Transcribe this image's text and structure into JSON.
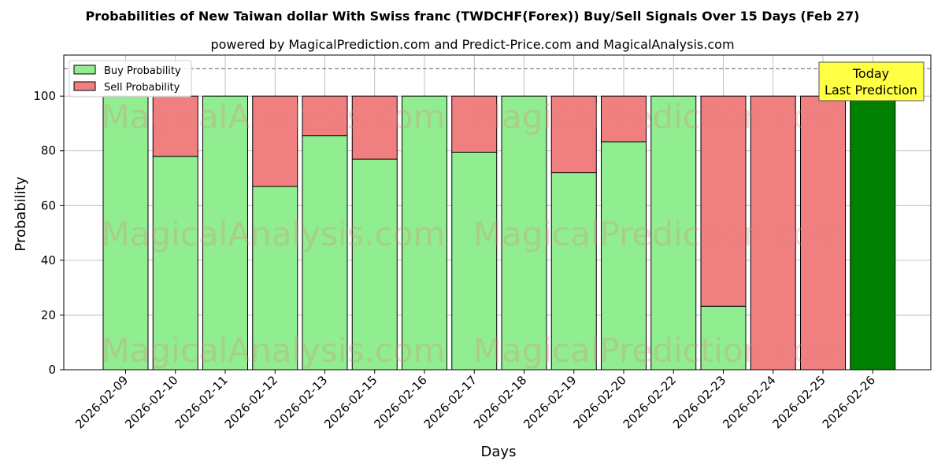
{
  "chart_data": {
    "type": "bar",
    "stacked": true,
    "title": "Probabilities of New Taiwan dollar With Swiss franc (TWDCHF(Forex)) Buy/Sell Signals Over 15 Days (Feb 27)",
    "subtitle": "powered by MagicalPrediction.com and Predict-Price.com and MagicalAnalysis.com",
    "xlabel": "Days",
    "ylabel": "Probability",
    "ylim": [
      0,
      115
    ],
    "yticks": [
      0,
      20,
      40,
      60,
      80,
      100
    ],
    "reference_line": 110,
    "grid": true,
    "legend_position": "top-left",
    "categories": [
      "2026-02-09",
      "2026-02-10",
      "2026-02-11",
      "2026-02-12",
      "2026-02-13",
      "2026-02-15",
      "2026-02-16",
      "2026-02-17",
      "2026-02-18",
      "2026-02-19",
      "2026-02-20",
      "2026-02-22",
      "2026-02-23",
      "2026-02-24",
      "2026-02-25",
      "2026-02-26"
    ],
    "series": [
      {
        "name": "Buy Probability",
        "color": "#90ee90",
        "values": [
          100,
          78,
          100,
          67,
          85.5,
          77,
          100,
          79.5,
          100,
          72,
          83.3,
          100,
          23.2,
          0,
          0,
          100
        ]
      },
      {
        "name": "Sell Probability",
        "color": "#f08080",
        "values": [
          0,
          22,
          0,
          33,
          14.5,
          23,
          0,
          20.5,
          0,
          28,
          16.7,
          0,
          76.8,
          100,
          100,
          0
        ]
      }
    ],
    "highlight": {
      "category": "2026-02-26",
      "color": "#008000"
    },
    "annotation": {
      "lines": [
        "Today",
        "Last Prediction"
      ],
      "background": "#ffff44"
    },
    "watermarks": [
      "MagicalAnalysis.com",
      "MagicalPrediction.com"
    ]
  }
}
